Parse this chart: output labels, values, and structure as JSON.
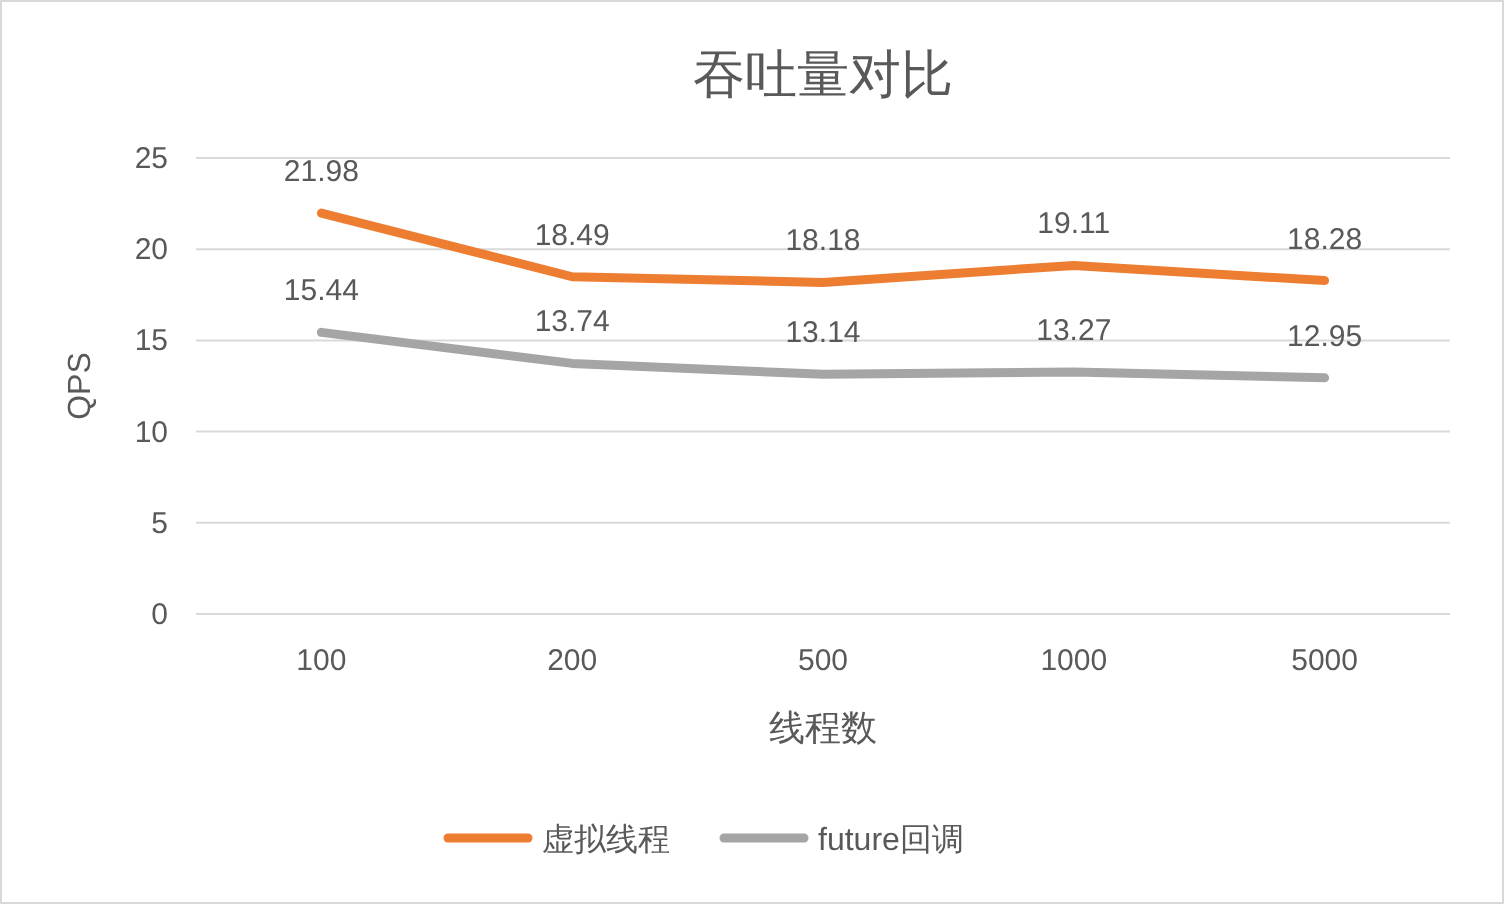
{
  "chart_data": {
    "type": "line",
    "title": "吞吐量对比",
    "xlabel": "线程数",
    "ylabel": "QPS",
    "categories": [
      "100",
      "200",
      "500",
      "1000",
      "5000"
    ],
    "series": [
      {
        "name": "虚拟线程",
        "color": "#ed7d31",
        "values": [
          21.98,
          18.49,
          18.18,
          19.11,
          18.28
        ]
      },
      {
        "name": "future回调",
        "color": "#a5a5a5",
        "values": [
          15.44,
          13.74,
          13.14,
          13.27,
          12.95
        ]
      }
    ],
    "ylim": [
      0,
      25
    ],
    "yticks": [
      0,
      5,
      10,
      15,
      20,
      25
    ],
    "grid": "y",
    "legend": "bottom",
    "data_labels": true
  }
}
